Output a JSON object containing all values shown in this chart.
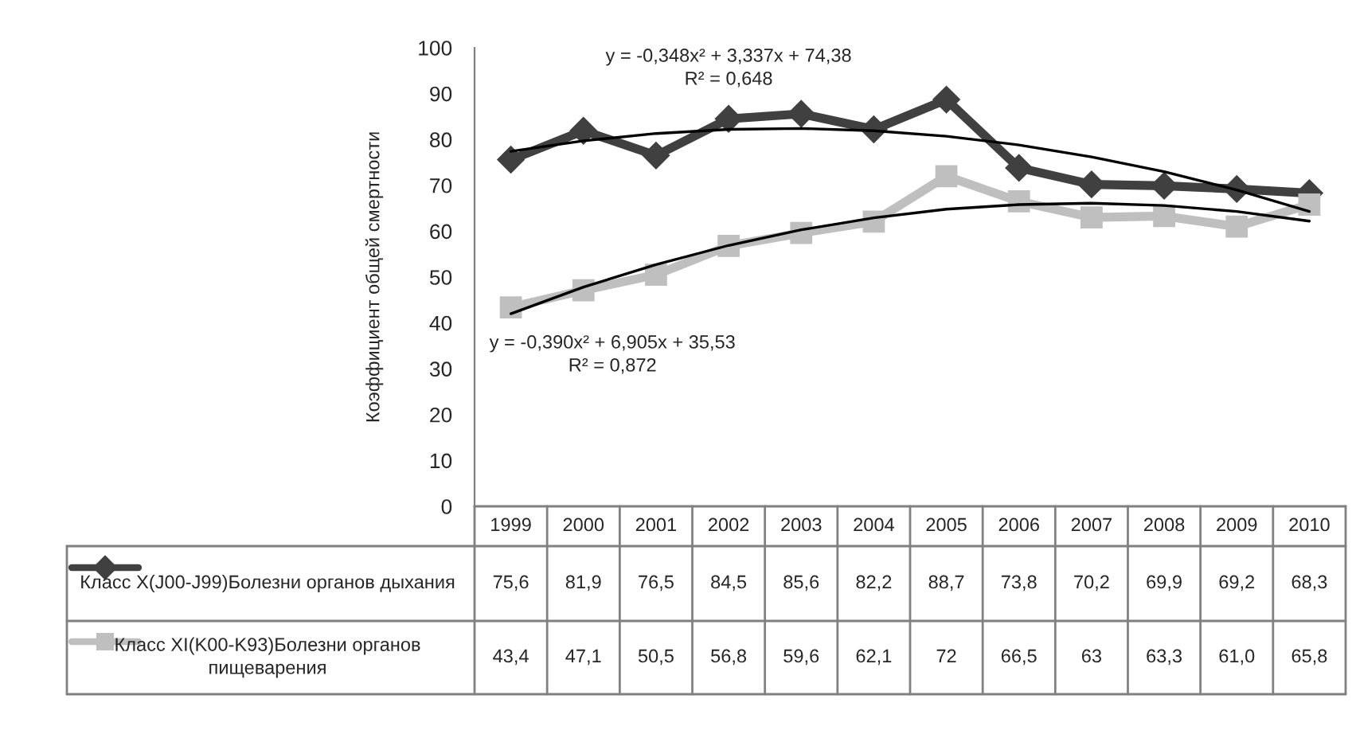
{
  "chart_data": {
    "type": "line",
    "ylabel": "Коэффициент общей смертности",
    "categories": [
      "1999",
      "2000",
      "2001",
      "2002",
      "2003",
      "2004",
      "2005",
      "2006",
      "2007",
      "2008",
      "2009",
      "2010"
    ],
    "ylim": [
      0,
      100
    ],
    "yticks": [
      0,
      10,
      20,
      30,
      40,
      50,
      60,
      70,
      80,
      90,
      100
    ],
    "grid": false,
    "legend": "bottom",
    "series": [
      {
        "name": "Класс X(J00-J99)Болезни органов дыхания",
        "color": "#404040",
        "marker": "diamond",
        "values": [
          75.6,
          81.9,
          76.5,
          84.5,
          85.6,
          82.2,
          88.7,
          73.8,
          70.2,
          69.9,
          69.2,
          68.3
        ],
        "value_labels": [
          "75,6",
          "81,9",
          "76,5",
          "84,5",
          "85,6",
          "82,2",
          "88,7",
          "73,8",
          "70,2",
          "69,9",
          "69,2",
          "68,3"
        ]
      },
      {
        "name": "Класс XI(K00-K93)Болезни органов пищеварения",
        "color": "#bfbfbf",
        "marker": "square",
        "values": [
          43.4,
          47.1,
          50.5,
          56.8,
          59.6,
          62.1,
          72,
          66.5,
          63,
          63.3,
          61.0,
          65.8
        ],
        "value_labels": [
          "43,4",
          "47,1",
          "50,5",
          "56,8",
          "59,6",
          "62,1",
          "72",
          "66,5",
          "63",
          "63,3",
          "61,0",
          "65,8"
        ]
      },
      {
        "type": "line",
        "color": "#000000",
        "marker": "none",
        "values": [
          77.4,
          79.7,
          81.3,
          82.2,
          82.4,
          81.9,
          80.7,
          78.8,
          76.2,
          73.0,
          69.0,
          64.3
        ]
      },
      {
        "type": "line",
        "color": "#000000",
        "marker": "none",
        "values": [
          42.0,
          47.8,
          52.7,
          56.9,
          60.3,
          62.9,
          64.8,
          65.8,
          66.1,
          65.6,
          64.3,
          62.2
        ]
      }
    ],
    "annotations": [
      "y = -0,348x² + 3,337x + 74,38\nR² = 0,648",
      "y = -0,390x² + 6,905x + 35,53\nR² = 0,872"
    ]
  }
}
